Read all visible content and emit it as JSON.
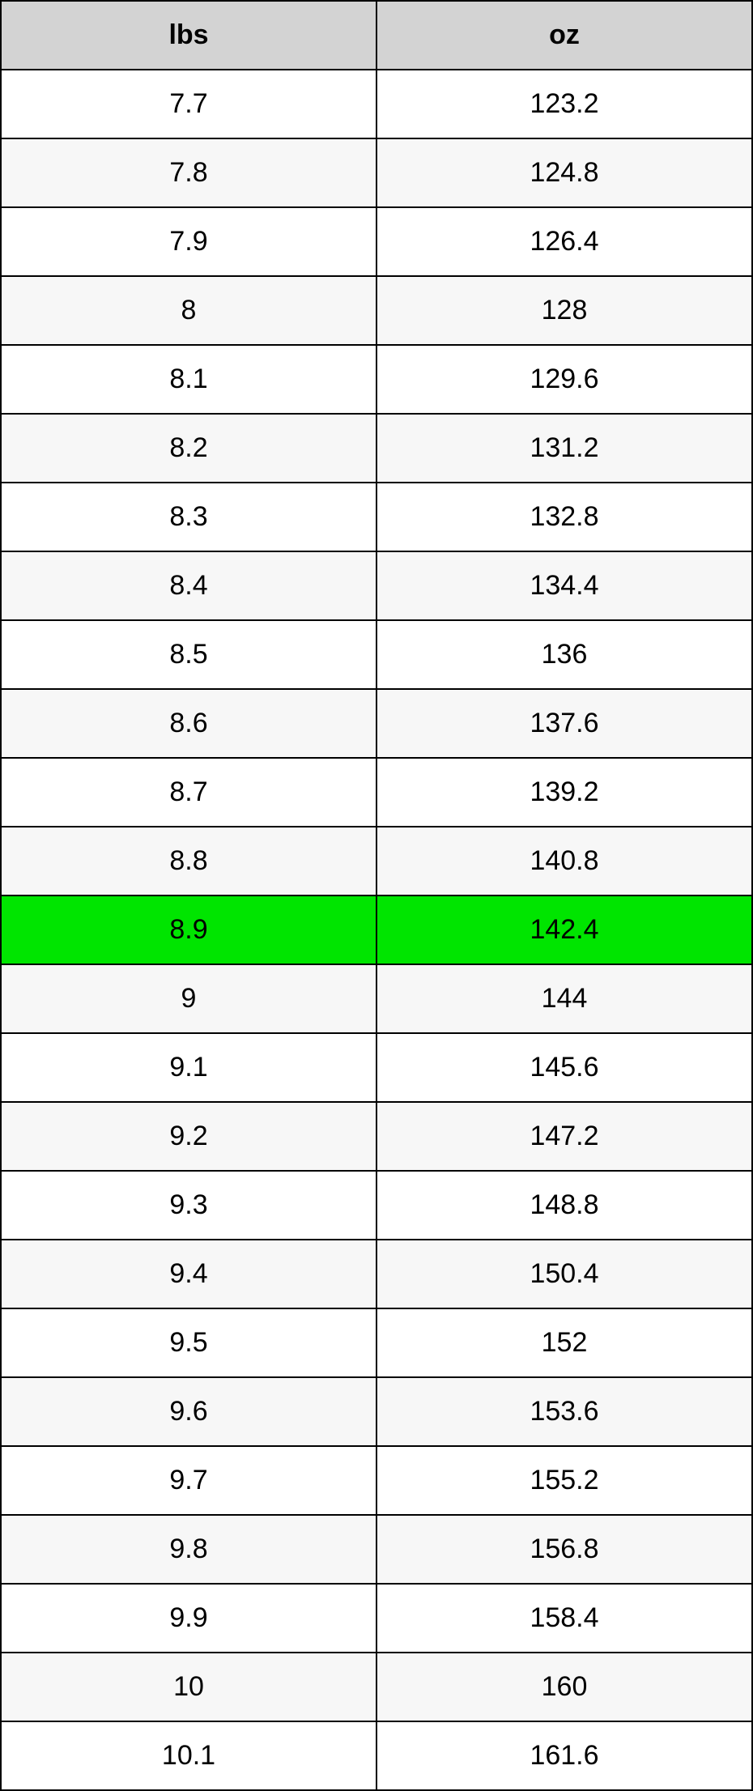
{
  "table": {
    "columns": [
      "lbs",
      "oz"
    ],
    "header_bg": "#d3d3d3",
    "header_fontsize": 34,
    "header_fontweight": "bold",
    "cell_fontsize": 34,
    "border_color": "#000000",
    "border_width": 2,
    "row_bg_odd": "#ffffff",
    "row_bg_even": "#f7f7f7",
    "highlight_bg": "#00e500",
    "text_color": "#000000",
    "rows": [
      {
        "lbs": "7.7",
        "oz": "123.2",
        "highlight": false
      },
      {
        "lbs": "7.8",
        "oz": "124.8",
        "highlight": false
      },
      {
        "lbs": "7.9",
        "oz": "126.4",
        "highlight": false
      },
      {
        "lbs": "8",
        "oz": "128",
        "highlight": false
      },
      {
        "lbs": "8.1",
        "oz": "129.6",
        "highlight": false
      },
      {
        "lbs": "8.2",
        "oz": "131.2",
        "highlight": false
      },
      {
        "lbs": "8.3",
        "oz": "132.8",
        "highlight": false
      },
      {
        "lbs": "8.4",
        "oz": "134.4",
        "highlight": false
      },
      {
        "lbs": "8.5",
        "oz": "136",
        "highlight": false
      },
      {
        "lbs": "8.6",
        "oz": "137.6",
        "highlight": false
      },
      {
        "lbs": "8.7",
        "oz": "139.2",
        "highlight": false
      },
      {
        "lbs": "8.8",
        "oz": "140.8",
        "highlight": false
      },
      {
        "lbs": "8.9",
        "oz": "142.4",
        "highlight": true
      },
      {
        "lbs": "9",
        "oz": "144",
        "highlight": false
      },
      {
        "lbs": "9.1",
        "oz": "145.6",
        "highlight": false
      },
      {
        "lbs": "9.2",
        "oz": "147.2",
        "highlight": false
      },
      {
        "lbs": "9.3",
        "oz": "148.8",
        "highlight": false
      },
      {
        "lbs": "9.4",
        "oz": "150.4",
        "highlight": false
      },
      {
        "lbs": "9.5",
        "oz": "152",
        "highlight": false
      },
      {
        "lbs": "9.6",
        "oz": "153.6",
        "highlight": false
      },
      {
        "lbs": "9.7",
        "oz": "155.2",
        "highlight": false
      },
      {
        "lbs": "9.8",
        "oz": "156.8",
        "highlight": false
      },
      {
        "lbs": "9.9",
        "oz": "158.4",
        "highlight": false
      },
      {
        "lbs": "10",
        "oz": "160",
        "highlight": false
      },
      {
        "lbs": "10.1",
        "oz": "161.6",
        "highlight": false
      }
    ]
  }
}
